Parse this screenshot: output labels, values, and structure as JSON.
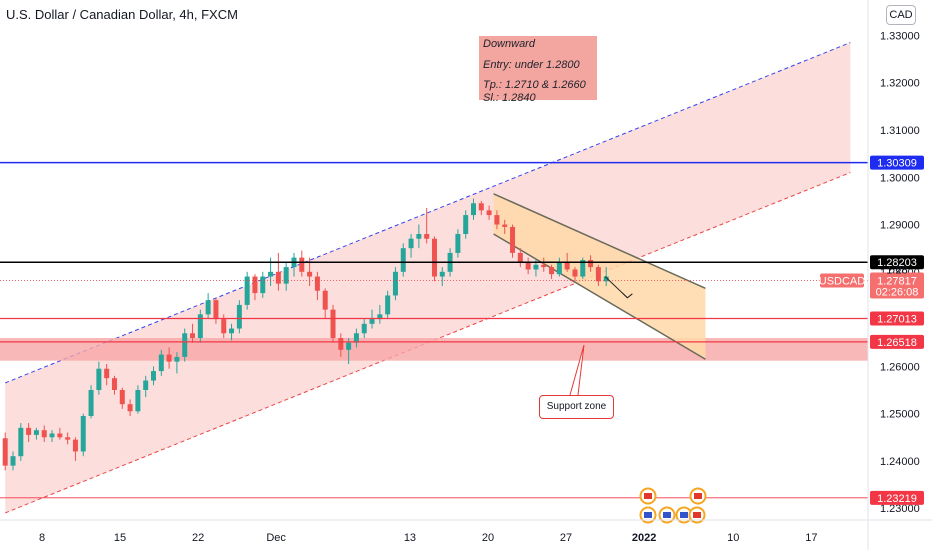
{
  "header": {
    "title": "U.S. Dollar / Canadian Dollar, 4h, FXCM",
    "currency_button": "CAD"
  },
  "annotation": {
    "line1": "Downward",
    "line2": "Entry: under 1.2800",
    "line3": "Tp.: 1.2710 & 1.2660",
    "line4": "Sl.: 1.2840"
  },
  "support_label": "Support zone",
  "colors": {
    "blue_level": "#1e2bf0",
    "red_level": "#f23645",
    "black_level": "#000000",
    "up_candle": "#26a69a",
    "down_candle": "#ef5350",
    "channel_fill": "#fbd3d1",
    "down_channel_fill": "#ffd8a8",
    "zone_fill": "#f7a6a6"
  },
  "chart_data": {
    "type": "candlestick",
    "symbol": "USDCAD",
    "timeframe": "4h",
    "y_range": [
      1.2275,
      1.3375
    ],
    "y_ticks": [
      "1.23000",
      "1.24000",
      "1.25000",
      "1.26000",
      "1.27000",
      "1.28000",
      "1.29000",
      "1.30000",
      "1.31000",
      "1.32000",
      "1.33000"
    ],
    "x_ticks": [
      {
        "label": "8",
        "pos": 0.0
      },
      {
        "label": "15",
        "pos": 7.0
      },
      {
        "label": "22",
        "pos": 14.0
      },
      {
        "label": "Dec",
        "pos": 21.0
      },
      {
        "label": "13",
        "pos": 33.0
      },
      {
        "label": "20",
        "pos": 40.0
      },
      {
        "label": "27",
        "pos": 47.0
      },
      {
        "label": "2022",
        "pos": 54.0
      },
      {
        "label": "10",
        "pos": 62.0
      },
      {
        "label": "17",
        "pos": 69.0
      }
    ],
    "x_range": [
      -3.3,
      72.5
    ],
    "price_levels": [
      {
        "label": "1.30309",
        "value": 1.30309,
        "color": "blue"
      },
      {
        "label": "1.28203",
        "value": 1.28203,
        "color": "black"
      },
      {
        "label": "1.27013",
        "value": 1.27013,
        "color": "red"
      },
      {
        "label": "1.26518",
        "value": 1.26518,
        "color": "red"
      },
      {
        "label": "1.23219",
        "value": 1.23219,
        "color": "red-thin"
      }
    ],
    "current_price": {
      "symbol": "USDCAD",
      "price": "1.27817",
      "countdown": "02:26:08",
      "value": 1.27817
    },
    "last_close_partial": "1.28",
    "support_zone": [
      1.2612,
      1.266
    ],
    "up_channel": {
      "upper_start": [
        -3.3,
        1.2565
      ],
      "upper_end": [
        72.5,
        1.3285
      ],
      "lower_start": [
        -3.3,
        1.229
      ],
      "lower_end": [
        72.5,
        1.301
      ]
    },
    "down_channel": {
      "upper_start": [
        40.5,
        1.2965
      ],
      "upper_end": [
        59.5,
        1.2765
      ],
      "lower_start": [
        40.5,
        1.288
      ],
      "lower_end": [
        59.5,
        1.2615
      ]
    },
    "projection_arrow": {
      "from": [
        50.5,
        1.279
      ],
      "to": [
        52.5,
        1.2745
      ]
    },
    "candles": [
      [
        -3.3,
        1.2448,
        1.246,
        1.238,
        1.239
      ],
      [
        -2.6,
        1.239,
        1.242,
        1.238,
        1.241
      ],
      [
        -1.9,
        1.241,
        1.248,
        1.24,
        1.247
      ],
      [
        -1.2,
        1.247,
        1.248,
        1.244,
        1.2455
      ],
      [
        -0.5,
        1.2455,
        1.247,
        1.2445,
        1.2465
      ],
      [
        0.2,
        1.2465,
        1.2475,
        1.244,
        1.245
      ],
      [
        0.9,
        1.245,
        1.2465,
        1.244,
        1.2458
      ],
      [
        1.6,
        1.2458,
        1.247,
        1.2445,
        1.245
      ],
      [
        2.3,
        1.245,
        1.246,
        1.2435,
        1.2445
      ],
      [
        3.0,
        1.2445,
        1.245,
        1.24,
        1.242
      ],
      [
        3.7,
        1.242,
        1.25,
        1.241,
        1.2495
      ],
      [
        4.4,
        1.2495,
        1.256,
        1.249,
        1.255
      ],
      [
        5.1,
        1.255,
        1.261,
        1.254,
        1.2595
      ],
      [
        5.8,
        1.2595,
        1.2605,
        1.256,
        1.2575
      ],
      [
        6.5,
        1.2575,
        1.258,
        1.254,
        1.255
      ],
      [
        7.2,
        1.255,
        1.2555,
        1.251,
        1.252
      ],
      [
        7.9,
        1.252,
        1.253,
        1.2495,
        1.2505
      ],
      [
        8.6,
        1.2505,
        1.256,
        1.25,
        1.255
      ],
      [
        9.3,
        1.255,
        1.258,
        1.2535,
        1.257
      ],
      [
        10.0,
        1.257,
        1.26,
        1.256,
        1.259
      ],
      [
        10.7,
        1.259,
        1.2635,
        1.258,
        1.2625
      ],
      [
        11.4,
        1.2625,
        1.264,
        1.2595,
        1.261
      ],
      [
        12.1,
        1.261,
        1.263,
        1.2585,
        1.262
      ],
      [
        12.8,
        1.262,
        1.268,
        1.261,
        1.267
      ],
      [
        13.5,
        1.267,
        1.269,
        1.265,
        1.266
      ],
      [
        14.2,
        1.266,
        1.272,
        1.265,
        1.271
      ],
      [
        14.9,
        1.271,
        1.2755,
        1.27,
        1.274
      ],
      [
        15.6,
        1.274,
        1.2745,
        1.269,
        1.27
      ],
      [
        16.3,
        1.27,
        1.271,
        1.266,
        1.267
      ],
      [
        17.0,
        1.267,
        1.269,
        1.2655,
        1.268
      ],
      [
        17.7,
        1.268,
        1.274,
        1.267,
        1.273
      ],
      [
        18.4,
        1.273,
        1.28,
        1.272,
        1.279
      ],
      [
        19.1,
        1.279,
        1.2795,
        1.274,
        1.2755
      ],
      [
        19.8,
        1.2755,
        1.28,
        1.2745,
        1.279
      ],
      [
        20.5,
        1.279,
        1.283,
        1.277,
        1.28
      ],
      [
        21.2,
        1.28,
        1.284,
        1.276,
        1.2775
      ],
      [
        21.9,
        1.2775,
        1.282,
        1.276,
        1.281
      ],
      [
        22.6,
        1.281,
        1.284,
        1.279,
        1.283
      ],
      [
        23.3,
        1.283,
        1.2845,
        1.279,
        1.28
      ],
      [
        24.0,
        1.28,
        1.283,
        1.277,
        1.279
      ],
      [
        24.7,
        1.279,
        1.28,
        1.274,
        1.276
      ],
      [
        25.4,
        1.276,
        1.2765,
        1.27,
        1.272
      ],
      [
        26.1,
        1.272,
        1.273,
        1.265,
        1.266
      ],
      [
        26.8,
        1.266,
        1.267,
        1.262,
        1.2635
      ],
      [
        27.5,
        1.2635,
        1.266,
        1.2605,
        1.265
      ],
      [
        28.2,
        1.265,
        1.268,
        1.264,
        1.267
      ],
      [
        28.9,
        1.267,
        1.27,
        1.266,
        1.269
      ],
      [
        29.6,
        1.269,
        1.272,
        1.268,
        1.27
      ],
      [
        30.3,
        1.27,
        1.273,
        1.269,
        1.271
      ],
      [
        31.0,
        1.271,
        1.276,
        1.27,
        1.275
      ],
      [
        31.7,
        1.275,
        1.281,
        1.274,
        1.28
      ],
      [
        32.4,
        1.28,
        1.286,
        1.279,
        1.285
      ],
      [
        33.1,
        1.285,
        1.288,
        1.283,
        1.287
      ],
      [
        33.8,
        1.287,
        1.29,
        1.285,
        1.288
      ],
      [
        34.5,
        1.288,
        1.2935,
        1.286,
        1.287
      ],
      [
        35.2,
        1.287,
        1.2875,
        1.278,
        1.279
      ],
      [
        35.9,
        1.279,
        1.281,
        1.277,
        1.28
      ],
      [
        36.6,
        1.28,
        1.285,
        1.279,
        1.284
      ],
      [
        37.3,
        1.284,
        1.289,
        1.283,
        1.288
      ],
      [
        38.0,
        1.288,
        1.293,
        1.287,
        1.292
      ],
      [
        38.7,
        1.292,
        1.2955,
        1.291,
        1.2945
      ],
      [
        39.4,
        1.2945,
        1.295,
        1.292,
        1.293
      ],
      [
        40.1,
        1.293,
        1.294,
        1.291,
        1.292
      ],
      [
        40.8,
        1.292,
        1.293,
        1.289,
        1.29
      ],
      [
        41.5,
        1.29,
        1.291,
        1.288,
        1.2895
      ],
      [
        42.2,
        1.2895,
        1.29,
        1.283,
        1.284
      ],
      [
        42.9,
        1.284,
        1.285,
        1.281,
        1.282
      ],
      [
        43.6,
        1.282,
        1.283,
        1.2795,
        1.2805
      ],
      [
        44.3,
        1.2805,
        1.2825,
        1.279,
        1.2815
      ],
      [
        45.0,
        1.2815,
        1.283,
        1.28,
        1.281
      ],
      [
        45.7,
        1.281,
        1.2815,
        1.2785,
        1.2795
      ],
      [
        46.4,
        1.2795,
        1.283,
        1.279,
        1.282
      ],
      [
        47.1,
        1.282,
        1.284,
        1.28,
        1.2805
      ],
      [
        47.8,
        1.2805,
        1.281,
        1.278,
        1.279
      ],
      [
        48.5,
        1.279,
        1.283,
        1.2785,
        1.2825
      ],
      [
        49.2,
        1.2825,
        1.2835,
        1.28,
        1.281
      ],
      [
        49.9,
        1.281,
        1.2815,
        1.277,
        1.278
      ],
      [
        50.6,
        1.278,
        1.281,
        1.277,
        1.279
      ]
    ]
  }
}
